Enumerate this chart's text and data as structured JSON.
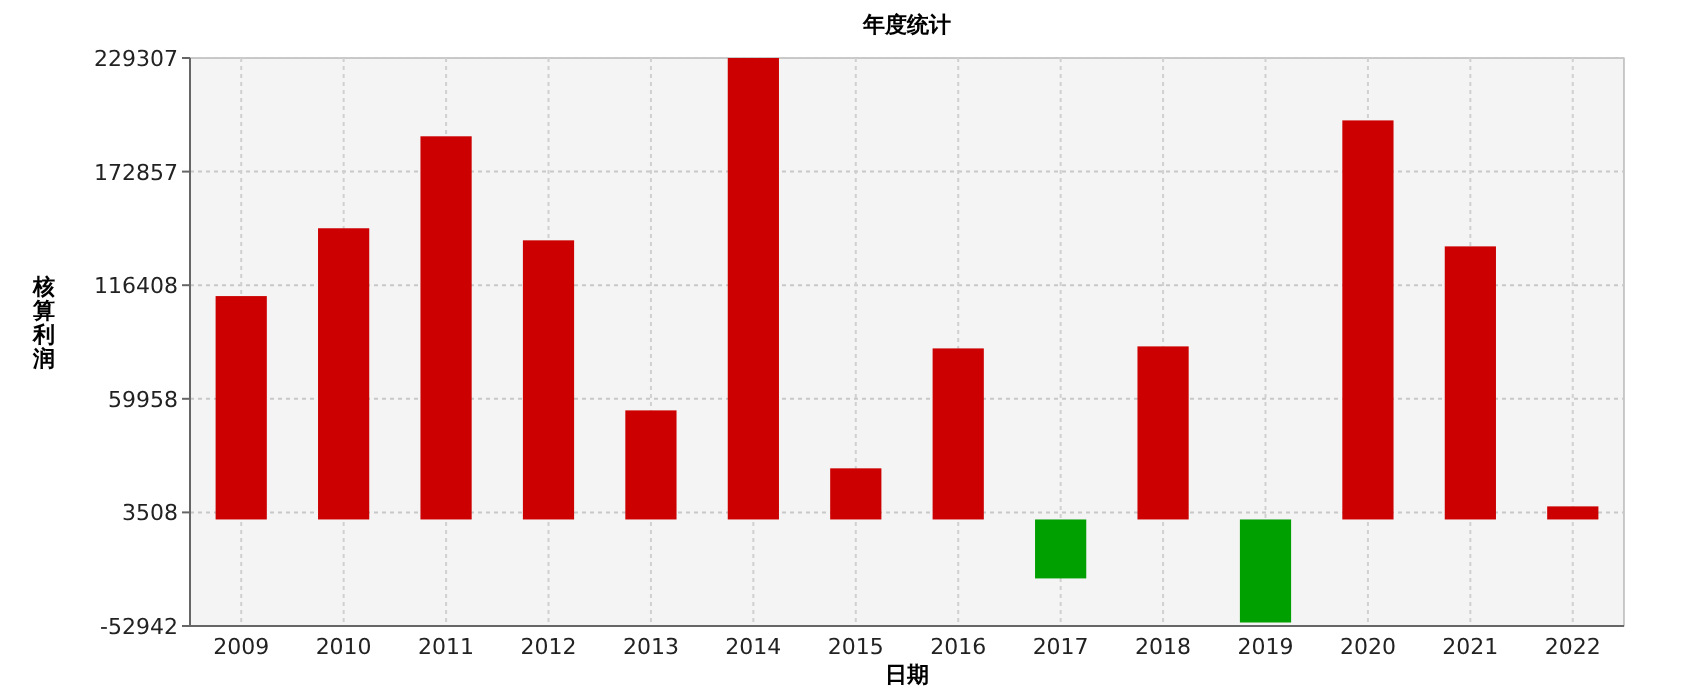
{
  "chart_data": {
    "type": "bar",
    "title": "年度统计",
    "xlabel": "日期",
    "ylabel": "核算利润",
    "categories": [
      "2009",
      "2010",
      "2011",
      "2012",
      "2013",
      "2014",
      "2015",
      "2016",
      "2017",
      "2018",
      "2019",
      "2020",
      "2021",
      "2022"
    ],
    "values": [
      111000,
      144700,
      190400,
      138700,
      54200,
      229307,
      25400,
      85000,
      -29300,
      86000,
      -51200,
      198300,
      135700,
      6500
    ],
    "colors": [
      "#cc0000",
      "#cc0000",
      "#cc0000",
      "#cc0000",
      "#cc0000",
      "#cc0000",
      "#cc0000",
      "#cc0000",
      "#00a000",
      "#cc0000",
      "#00a000",
      "#cc0000",
      "#cc0000",
      "#cc0000"
    ],
    "ylim": [
      -52942,
      229307
    ],
    "yticks": [
      -52942,
      3508,
      59958,
      116408,
      172857,
      229307
    ],
    "grid": true
  }
}
